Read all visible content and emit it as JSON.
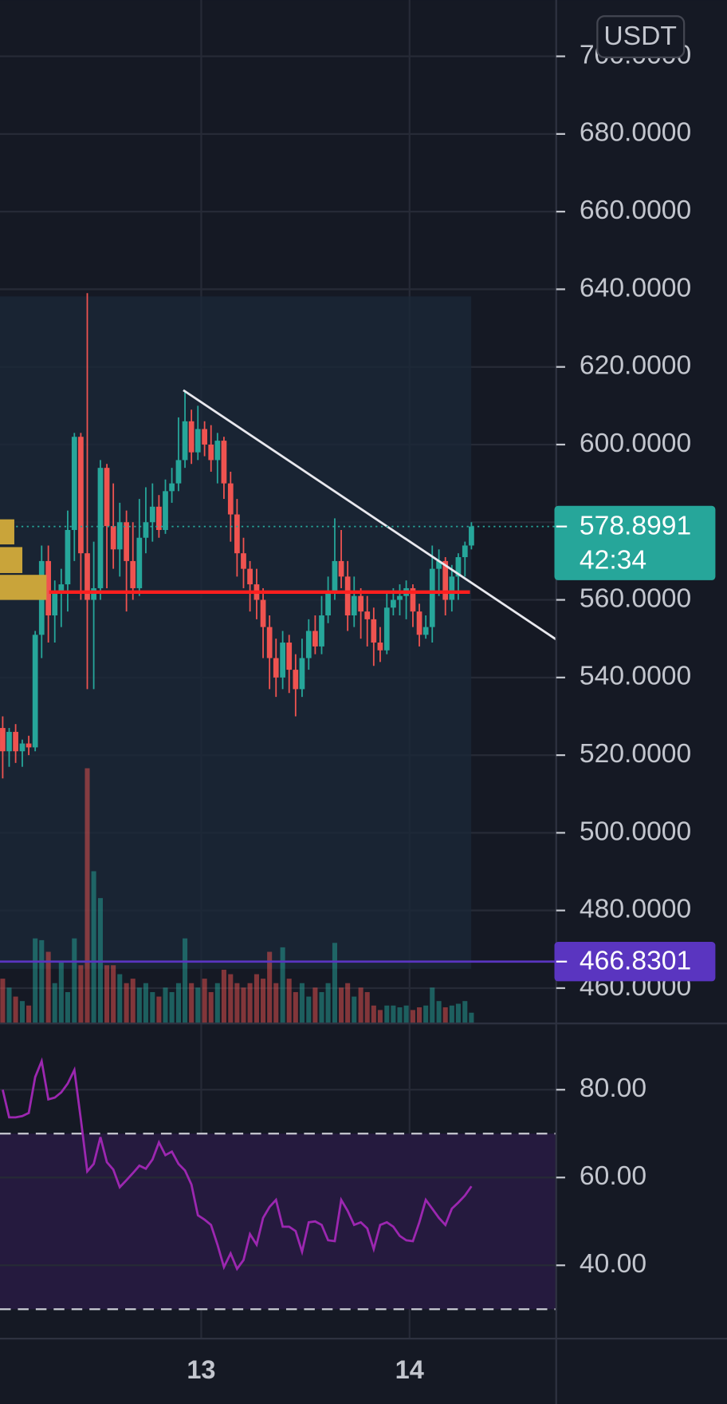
{
  "chart_data": [
    {
      "type": "candlestick",
      "currency": "USDT",
      "up_color": "#26a69a",
      "down_color": "#ef5350",
      "xlim": [
        12.034,
        14.704
      ],
      "xticks": [
        13,
        14
      ],
      "ylim": [
        450.9,
        714.5
      ],
      "yticks": [
        {
          "value": 460,
          "label": "460.0000"
        },
        {
          "value": 480,
          "label": "480.0000"
        },
        {
          "value": 500,
          "label": "500.0000"
        },
        {
          "value": 520,
          "label": "520.0000"
        },
        {
          "value": 540,
          "label": "540.0000"
        },
        {
          "value": 560,
          "label": "560.0000"
        },
        {
          "value": 580,
          "label": "580.0000"
        },
        {
          "value": 600,
          "label": "600.0000"
        },
        {
          "value": 620,
          "label": "620.0000"
        },
        {
          "value": 640,
          "label": "640.0000"
        },
        {
          "value": 660,
          "label": "660.0000"
        },
        {
          "value": 680,
          "label": "680.0000"
        },
        {
          "value": 700,
          "label": "700.0000"
        }
      ],
      "grid": true,
      "x": [
        12.047,
        12.078,
        12.109,
        12.141,
        12.172,
        12.203,
        12.234,
        12.266,
        12.297,
        12.328,
        12.359,
        12.391,
        12.422,
        12.453,
        12.484,
        12.516,
        12.547,
        12.578,
        12.609,
        12.641,
        12.672,
        12.703,
        12.734,
        12.766,
        12.797,
        12.828,
        12.859,
        12.891,
        12.922,
        12.953,
        12.984,
        13.016,
        13.047,
        13.078,
        13.109,
        13.141,
        13.172,
        13.203,
        13.234,
        13.266,
        13.297,
        13.328,
        13.359,
        13.391,
        13.422,
        13.453,
        13.484,
        13.516,
        13.547,
        13.578,
        13.609,
        13.641,
        13.672,
        13.703,
        13.734,
        13.766,
        13.797,
        13.828,
        13.859,
        13.891,
        13.922,
        13.953,
        13.984,
        14.016,
        14.047,
        14.078,
        14.109,
        14.141,
        14.172,
        14.203,
        14.234,
        14.266,
        14.297
      ],
      "open": [
        527,
        521,
        526,
        521,
        523,
        522,
        551,
        570,
        556,
        562,
        564,
        578,
        602,
        572,
        560,
        563,
        594,
        579,
        573,
        580,
        570,
        563,
        576,
        580,
        584,
        578,
        588,
        590,
        596,
        606,
        598,
        604,
        600,
        596,
        601,
        590,
        582,
        572,
        568,
        564,
        560,
        553,
        545,
        540,
        549,
        542,
        537,
        545,
        552,
        548,
        556,
        562,
        570,
        566,
        556,
        561,
        557,
        555,
        549,
        547,
        558,
        560,
        561,
        563,
        557,
        551,
        553,
        568,
        570,
        560,
        566,
        571,
        574
      ],
      "high": [
        530,
        527,
        528,
        524,
        525,
        552,
        574,
        574,
        565,
        568,
        583,
        603,
        603,
        639,
        575,
        596,
        595,
        590,
        585,
        583,
        580,
        586,
        589,
        590,
        587,
        591,
        594,
        607,
        614,
        609,
        610,
        606,
        605,
        603,
        602,
        593,
        586,
        576,
        570,
        568,
        563,
        556,
        550,
        552,
        551,
        546,
        550,
        555,
        556,
        561,
        566,
        581,
        578,
        570,
        566,
        563,
        561,
        558,
        553,
        562,
        563,
        564,
        565,
        564,
        559,
        556,
        574,
        573,
        571,
        569,
        572,
        575,
        580
      ],
      "low": [
        514,
        517,
        518,
        517,
        520,
        521,
        545,
        549,
        549,
        553,
        557,
        570,
        560,
        537,
        537,
        560,
        563,
        568,
        566,
        557,
        560,
        561,
        572,
        575,
        576,
        577,
        585,
        588,
        594,
        595,
        596,
        597,
        593,
        590,
        586,
        575,
        566,
        563,
        557,
        555,
        545,
        537,
        535,
        537,
        536,
        530,
        535,
        542,
        546,
        546,
        554,
        560,
        563,
        552,
        553,
        550,
        548,
        543,
        544,
        546,
        556,
        556,
        555,
        553,
        548,
        550,
        549,
        561,
        556,
        557,
        560,
        566,
        573
      ],
      "close": [
        521,
        526,
        521,
        523,
        522,
        551,
        570,
        556,
        562,
        564,
        578,
        602,
        572,
        560,
        563,
        594,
        579,
        573,
        580,
        570,
        563,
        576,
        580,
        584,
        578,
        588,
        590,
        596,
        606,
        598,
        604,
        600,
        596,
        601,
        590,
        582,
        572,
        568,
        564,
        560,
        553,
        545,
        540,
        549,
        542,
        537,
        545,
        552,
        548,
        556,
        562,
        570,
        566,
        556,
        561,
        557,
        555,
        549,
        547,
        558,
        560,
        561,
        563,
        557,
        551,
        553,
        568,
        570,
        560,
        566,
        571,
        574,
        578.8991
      ],
      "volume": [
        50,
        40,
        30,
        25,
        20,
        95,
        93,
        80,
        45,
        70,
        35,
        95,
        65,
        285,
        170,
        140,
        65,
        65,
        55,
        45,
        50,
        40,
        45,
        35,
        30,
        40,
        35,
        45,
        95,
        45,
        40,
        50,
        35,
        45,
        60,
        55,
        45,
        40,
        45,
        55,
        50,
        80,
        45,
        85,
        50,
        35,
        45,
        30,
        40,
        35,
        45,
        90,
        40,
        45,
        30,
        40,
        35,
        20,
        15,
        20,
        20,
        18,
        20,
        15,
        18,
        20,
        40,
        25,
        18,
        20,
        22,
        25,
        12
      ],
      "volume_ylim": [
        0,
        400
      ],
      "last_price": 578.8991,
      "countdown": "42:34",
      "price_line": {
        "value": 466.8301,
        "color": "#5a35c0"
      },
      "level": {
        "value": 562,
        "x": [
          12.27,
          14.29
        ],
        "color": "#ff1e1e"
      },
      "trendline": {
        "x": [
          12.914,
          14.704
        ],
        "y": [
          614,
          549.8
        ],
        "color": "#e8e8ee"
      }
    },
    {
      "type": "line",
      "ylim": [
        23.3,
        95.1
      ],
      "yticks": [
        {
          "value": 40,
          "label": "40.00"
        },
        {
          "value": 60,
          "label": "60.00"
        },
        {
          "value": 80,
          "label": "80.00"
        }
      ],
      "band": [
        30,
        70
      ],
      "band_color": "#251a3e",
      "color": "#9c27b0",
      "values": [
        80,
        73.7,
        73.7,
        74,
        74.7,
        82.9,
        86.5,
        77.8,
        78.2,
        79.4,
        81.4,
        84.5,
        73.3,
        61.4,
        63.1,
        69.2,
        63.5,
        61.8,
        57.8,
        59.4,
        61,
        62.7,
        62,
        64.1,
        68,
        65.1,
        65.9,
        63.1,
        61.6,
        58.4,
        51.4,
        50.4,
        49.2,
        44.7,
        39.6,
        42.7,
        39.2,
        41.2,
        47.1,
        44.7,
        50.8,
        53.3,
        54.9,
        48.8,
        48.8,
        47.8,
        43.1,
        49.8,
        50,
        49.2,
        45.7,
        45.5,
        54.9,
        52.4,
        49.2,
        49.8,
        48.4,
        43.7,
        49.2,
        49.8,
        48.8,
        46.7,
        45.7,
        45.5,
        49.8,
        54.9,
        52.9,
        50.8,
        49.2,
        52.9,
        54.3,
        55.9,
        58
      ]
    }
  ]
}
